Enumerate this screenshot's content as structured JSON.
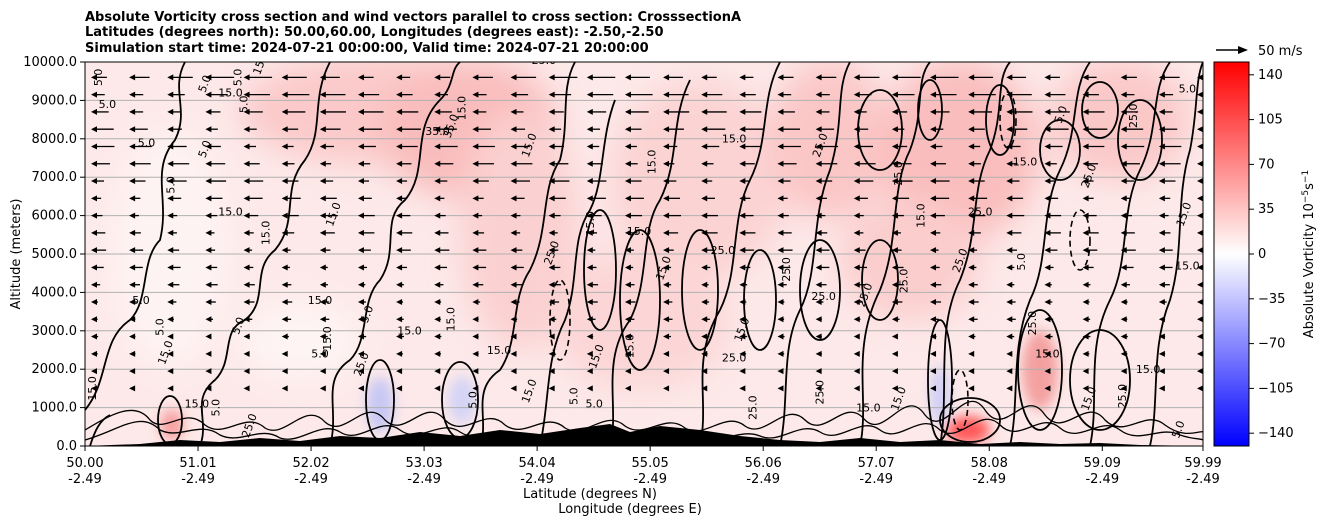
{
  "chart_data": {
    "type": "heatmap",
    "title_lines": [
      "Absolute Vorticity cross section and wind vectors parallel to cross section: CrosssectionA",
      "Latitudes (degrees north): 50.00,60.00, Longitudes (degrees east): -2.50,-2.50",
      "Simulation start time: 2024-07-21 00:00:00, Valid time: 2024-07-21 20:00:00"
    ],
    "xlabel_lat": "Latitude (degrees N)",
    "xlabel_lon": "Longitude (degrees E)",
    "ylabel": "Altitude (meters)",
    "x_ticks": [
      {
        "lat": "50.00",
        "lon": "-2.49",
        "value": 50.0
      },
      {
        "lat": "51.01",
        "lon": "-2.49",
        "value": 51.01
      },
      {
        "lat": "52.02",
        "lon": "-2.49",
        "value": 52.02
      },
      {
        "lat": "53.03",
        "lon": "-2.49",
        "value": 53.03
      },
      {
        "lat": "54.04",
        "lon": "-2.49",
        "value": 54.04
      },
      {
        "lat": "55.05",
        "lon": "-2.49",
        "value": 55.05
      },
      {
        "lat": "56.06",
        "lon": "-2.49",
        "value": 56.06
      },
      {
        "lat": "57.07",
        "lon": "-2.49",
        "value": 57.07
      },
      {
        "lat": "58.08",
        "lon": "-2.49",
        "value": 58.08
      },
      {
        "lat": "59.09",
        "lon": "-2.49",
        "value": 59.09
      },
      {
        "lat": "59.99",
        "lon": "-2.49",
        "value": 59.99
      }
    ],
    "xlim": [
      50.0,
      59.99
    ],
    "y_ticks": [
      "0.0",
      "1000.0",
      "2000.0",
      "3000.0",
      "4000.0",
      "5000.0",
      "6000.0",
      "7000.0",
      "8000.0",
      "9000.0",
      "10000.0"
    ],
    "ylim": [
      0,
      10000
    ],
    "grid": "horizontal",
    "colorbar": {
      "label": "Absolute Vorticity 10^-5 s^-1",
      "label_main": "Absolute Vorticity 10",
      "label_exp": "−5",
      "label_unit": "s",
      "label_unit_exp": "−1",
      "ticks": [
        "140",
        "105",
        "70",
        "35",
        "0",
        "−35",
        "−70",
        "−105",
        "−140"
      ],
      "range": [
        -150,
        150
      ],
      "colormap": "bwr"
    },
    "quiver_key": {
      "label": "50 m/s",
      "value": 50
    },
    "contour_labels": [
      {
        "text": "5.0",
        "lat": 50.15,
        "alt": 9600
      },
      {
        "text": "5.0",
        "lat": 50.2,
        "alt": 8800
      },
      {
        "text": "15.0",
        "lat": 51.6,
        "alt": 9950
      },
      {
        "text": "5.0",
        "lat": 51.4,
        "alt": 9600
      },
      {
        "text": "15.0",
        "lat": 51.3,
        "alt": 9100
      },
      {
        "text": "5.0",
        "lat": 51.1,
        "alt": 9400
      },
      {
        "text": "5.0",
        "lat": 51.45,
        "alt": 8900
      },
      {
        "text": "5.0",
        "lat": 50.55,
        "alt": 7800
      },
      {
        "text": "5.0",
        "lat": 51.1,
        "alt": 7700
      },
      {
        "text": "5.0",
        "lat": 50.8,
        "alt": 6800
      },
      {
        "text": "15.0",
        "lat": 51.3,
        "alt": 6000
      },
      {
        "text": "15.0",
        "lat": 52.25,
        "alt": 6000
      },
      {
        "text": "15.0",
        "lat": 51.65,
        "alt": 5550
      },
      {
        "text": "25.0",
        "lat": 54.1,
        "alt": 9950
      },
      {
        "text": "35.0",
        "lat": 53.3,
        "alt": 8300
      },
      {
        "text": "15.0",
        "lat": 53.4,
        "alt": 8800
      },
      {
        "text": "35.0",
        "lat": 53.15,
        "alt": 8100
      },
      {
        "text": "15.0",
        "lat": 54.0,
        "alt": 7800
      },
      {
        "text": "15.0",
        "lat": 55.1,
        "alt": 7400
      },
      {
        "text": "15.0",
        "lat": 55.8,
        "alt": 7900
      },
      {
        "text": "25.0",
        "lat": 56.6,
        "alt": 7800
      },
      {
        "text": "25.0",
        "lat": 57.3,
        "alt": 7100
      },
      {
        "text": "15.0",
        "lat": 58.4,
        "alt": 7300
      },
      {
        "text": "25.0",
        "lat": 59.0,
        "alt": 7000
      },
      {
        "text": "25.0",
        "lat": 59.4,
        "alt": 8600
      },
      {
        "text": "5.0",
        "lat": 59.85,
        "alt": 9200
      },
      {
        "text": "5.0",
        "lat": 58.75,
        "alt": 8600
      },
      {
        "text": "15.0",
        "lat": 57.5,
        "alt": 6000
      },
      {
        "text": "25.0",
        "lat": 58.0,
        "alt": 6000
      },
      {
        "text": "15.0",
        "lat": 59.85,
        "alt": 6000
      },
      {
        "text": "5.0",
        "lat": 58.4,
        "alt": 4800
      },
      {
        "text": "15.0",
        "lat": 59.85,
        "alt": 4600
      },
      {
        "text": "25.0",
        "lat": 57.85,
        "alt": 4800
      },
      {
        "text": "25.0",
        "lat": 57.35,
        "alt": 4300
      },
      {
        "text": "25.0",
        "lat": 56.6,
        "alt": 3800
      },
      {
        "text": "25.0",
        "lat": 57.0,
        "alt": 3900
      },
      {
        "text": "25.0",
        "lat": 56.3,
        "alt": 4600
      },
      {
        "text": "25.0",
        "lat": 55.7,
        "alt": 5000
      },
      {
        "text": "15.0",
        "lat": 55.2,
        "alt": 4600
      },
      {
        "text": "15.0",
        "lat": 54.55,
        "alt": 5800
      },
      {
        "text": "15.0",
        "lat": 54.95,
        "alt": 5500
      },
      {
        "text": "25.0",
        "lat": 54.2,
        "alt": 5000
      },
      {
        "text": "15.0",
        "lat": 53.3,
        "alt": 3300
      },
      {
        "text": "15.0",
        "lat": 52.9,
        "alt": 2900
      },
      {
        "text": "5.0",
        "lat": 52.55,
        "alt": 3400
      },
      {
        "text": "15.0",
        "lat": 52.2,
        "alt": 2800
      },
      {
        "text": "15.0",
        "lat": 52.1,
        "alt": 3700
      },
      {
        "text": "5.0",
        "lat": 51.4,
        "alt": 3100
      },
      {
        "text": "5.0",
        "lat": 50.7,
        "alt": 3100
      },
      {
        "text": "5.0",
        "lat": 50.5,
        "alt": 3700
      },
      {
        "text": "15.0",
        "lat": 50.75,
        "alt": 2400
      },
      {
        "text": "15.0",
        "lat": 50.1,
        "alt": 1500
      },
      {
        "text": "15.0",
        "lat": 51.0,
        "alt": 1000
      },
      {
        "text": "25.0",
        "lat": 51.5,
        "alt": 500
      },
      {
        "text": "5.0",
        "lat": 51.2,
        "alt": 1000
      },
      {
        "text": "5.0",
        "lat": 52.1,
        "alt": 2300
      },
      {
        "text": "25.0",
        "lat": 52.5,
        "alt": 2100
      },
      {
        "text": "5.0",
        "lat": 53.5,
        "alt": 1200
      },
      {
        "text": "15.0",
        "lat": 53.7,
        "alt": 2400
      },
      {
        "text": "15.0",
        "lat": 54.0,
        "alt": 1400
      },
      {
        "text": "5.0",
        "lat": 54.4,
        "alt": 1300
      },
      {
        "text": "5.0",
        "lat": 54.55,
        "alt": 1000
      },
      {
        "text": "15.0",
        "lat": 54.6,
        "alt": 2300
      },
      {
        "text": "15.0",
        "lat": 54.9,
        "alt": 2600
      },
      {
        "text": "25.0",
        "lat": 55.8,
        "alt": 2200
      },
      {
        "text": "15.0",
        "lat": 55.9,
        "alt": 3000
      },
      {
        "text": "25.0",
        "lat": 56.6,
        "alt": 1400
      },
      {
        "text": "15.0",
        "lat": 57.0,
        "alt": 900
      },
      {
        "text": "15.0",
        "lat": 57.3,
        "alt": 1200
      },
      {
        "text": "25.0",
        "lat": 56.0,
        "alt": 1000
      },
      {
        "text": "15.0",
        "lat": 58.6,
        "alt": 2300
      },
      {
        "text": "15.0",
        "lat": 59.0,
        "alt": 1200
      },
      {
        "text": "25.0",
        "lat": 59.3,
        "alt": 1300
      },
      {
        "text": "15.0",
        "lat": 59.5,
        "alt": 1900
      },
      {
        "text": "5.0",
        "lat": 59.8,
        "alt": 400
      },
      {
        "text": "25.0",
        "lat": 58.5,
        "alt": 3200
      }
    ]
  }
}
